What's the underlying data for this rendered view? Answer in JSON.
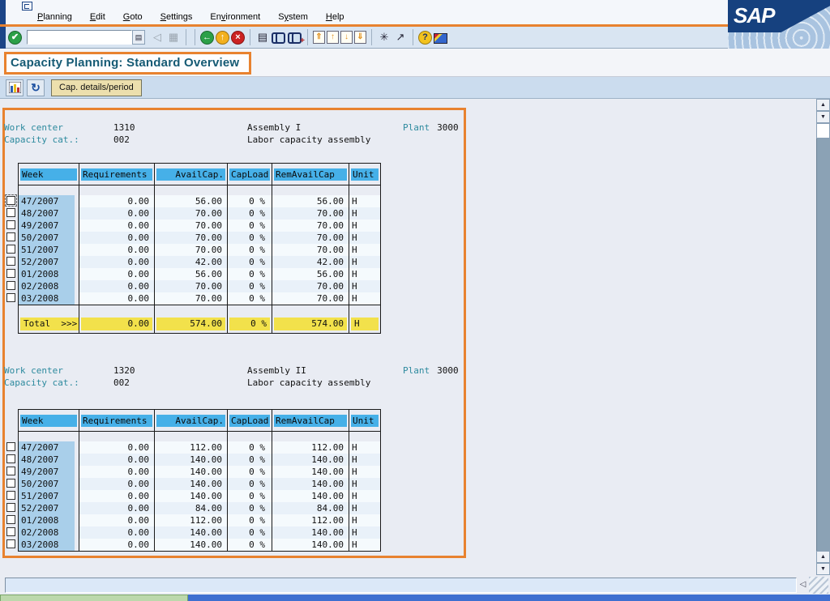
{
  "window": {
    "controls": [
      {
        "name": "minimize-button",
        "glyph": "▁"
      },
      {
        "name": "maximize-button",
        "glyph": "⧉"
      },
      {
        "name": "close-button",
        "glyph": "✕"
      }
    ],
    "logo_text": "SAP"
  },
  "menu_bar": {
    "items": [
      {
        "label": "Planning",
        "underline": 0
      },
      {
        "label": "Edit",
        "underline": 0
      },
      {
        "label": "Goto",
        "underline": 0
      },
      {
        "label": "Settings",
        "underline": 0
      },
      {
        "label": "Environment",
        "underline": 2
      },
      {
        "label": "System",
        "underline": 1
      },
      {
        "label": "Help",
        "underline": 0
      }
    ]
  },
  "toolbar": {
    "enter_icon": {
      "name": "enter-icon",
      "glyph": "✔"
    },
    "command_value": "",
    "command_dropdown_glyph": "▤",
    "icon_groups": [
      {
        "items": [
          {
            "name": "back-arrow-disabled-icon",
            "glyph": "◁",
            "cls": "gray"
          },
          {
            "name": "save-disabled-icon",
            "glyph": "▦",
            "cls": "gray"
          }
        ]
      },
      {
        "items": [
          {
            "name": "back-icon",
            "glyph": "←",
            "cls": "circ green"
          },
          {
            "name": "exit-icon",
            "glyph": "↑",
            "cls": "circ yellow"
          },
          {
            "name": "cancel-icon",
            "glyph": "×",
            "cls": "circ red"
          }
        ]
      },
      {
        "items": [
          {
            "name": "print-icon",
            "glyph": "▤",
            "cls": "flat"
          },
          {
            "name": "find-icon",
            "glyph": "",
            "cls": "binoc"
          },
          {
            "name": "find-next-icon",
            "glyph": "+",
            "cls": "binoc"
          }
        ]
      },
      {
        "items": [
          {
            "name": "first-page-icon",
            "glyph": "⇑",
            "cls": "page"
          },
          {
            "name": "previous-page-icon",
            "glyph": "↑",
            "cls": "page"
          },
          {
            "name": "next-page-icon",
            "glyph": "↓",
            "cls": "page"
          },
          {
            "name": "last-page-icon",
            "glyph": "⇓",
            "cls": "page"
          }
        ]
      },
      {
        "items": [
          {
            "name": "new-session-icon",
            "glyph": "✳",
            "cls": "flat"
          },
          {
            "name": "create-shortcut-icon",
            "glyph": "↗",
            "cls": "flat"
          }
        ]
      },
      {
        "items": [
          {
            "name": "help-icon",
            "glyph": "?",
            "cls": "circ helpy"
          },
          {
            "name": "customize-layout-icon",
            "glyph": "",
            "cls": "screen"
          }
        ]
      }
    ]
  },
  "header": {
    "title": "Capacity Planning: Standard Overview"
  },
  "app_toolbar": {
    "chart_icon": "capacity-graphic-icon",
    "refresh_icon": {
      "name": "refresh-icon",
      "glyph": "↻"
    },
    "cap_details_label": "Cap. details/period"
  },
  "sections": [
    {
      "work_center_label": "Work center",
      "work_center": "1310",
      "work_center_name": "Assembly I",
      "plant_label": "Plant",
      "plant": "3000",
      "capacity_cat_label": "Capacity cat.:",
      "capacity_cat": "002",
      "capacity_desc": "Labor capacity assembly",
      "table": {
        "headers": [
          "Week",
          "Requirements",
          "AvailCap.",
          "CapLoad",
          "RemAvailCap",
          "Unit"
        ],
        "rows": [
          [
            "47/2007",
            "0.00",
            "56.00",
            "0 %",
            "56.00",
            "H"
          ],
          [
            "48/2007",
            "0.00",
            "70.00",
            "0 %",
            "70.00",
            "H"
          ],
          [
            "49/2007",
            "0.00",
            "70.00",
            "0 %",
            "70.00",
            "H"
          ],
          [
            "50/2007",
            "0.00",
            "70.00",
            "0 %",
            "70.00",
            "H"
          ],
          [
            "51/2007",
            "0.00",
            "70.00",
            "0 %",
            "70.00",
            "H"
          ],
          [
            "52/2007",
            "0.00",
            "42.00",
            "0 %",
            "42.00",
            "H"
          ],
          [
            "01/2008",
            "0.00",
            "56.00",
            "0 %",
            "56.00",
            "H"
          ],
          [
            "02/2008",
            "0.00",
            "70.00",
            "0 %",
            "70.00",
            "H"
          ],
          [
            "03/2008",
            "0.00",
            "70.00",
            "0 %",
            "70.00",
            "H"
          ]
        ],
        "total": [
          "Total  >>>",
          "0.00",
          "574.00",
          "0 %",
          "574.00",
          "H"
        ]
      }
    },
    {
      "work_center_label": "Work center",
      "work_center": "1320",
      "work_center_name": "Assembly II",
      "plant_label": "Plant",
      "plant": "3000",
      "capacity_cat_label": "Capacity cat.:",
      "capacity_cat": "002",
      "capacity_desc": "Labor capacity assembly",
      "table": {
        "headers": [
          "Week",
          "Requirements",
          "AvailCap.",
          "CapLoad",
          "RemAvailCap",
          "Unit"
        ],
        "rows": [
          [
            "47/2007",
            "0.00",
            "112.00",
            "0 %",
            "112.00",
            "H"
          ],
          [
            "48/2007",
            "0.00",
            "140.00",
            "0 %",
            "140.00",
            "H"
          ],
          [
            "49/2007",
            "0.00",
            "140.00",
            "0 %",
            "140.00",
            "H"
          ],
          [
            "50/2007",
            "0.00",
            "140.00",
            "0 %",
            "140.00",
            "H"
          ],
          [
            "51/2007",
            "0.00",
            "140.00",
            "0 %",
            "140.00",
            "H"
          ],
          [
            "52/2007",
            "0.00",
            "84.00",
            "0 %",
            "84.00",
            "H"
          ],
          [
            "01/2008",
            "0.00",
            "112.00",
            "0 %",
            "112.00",
            "H"
          ],
          [
            "02/2008",
            "0.00",
            "140.00",
            "0 %",
            "140.00",
            "H"
          ],
          [
            "03/2008",
            "0.00",
            "140.00",
            "0 %",
            "140.00",
            "H"
          ]
        ],
        "total": null
      }
    }
  ],
  "status_bar": {
    "message": "",
    "collapse_glyph": "◁"
  },
  "colors": {
    "annotation_orange": "#e8822f",
    "header_blue": "#46b0e8",
    "week_blue": "#a9cfea",
    "total_yellow": "#f2e14b",
    "label_teal": "#2d8a9e",
    "title_text": "#155a74"
  }
}
